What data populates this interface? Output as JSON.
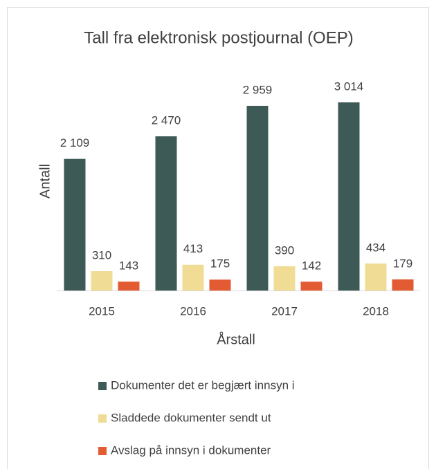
{
  "chart_data": {
    "type": "bar",
    "title": "Tall fra elektronisk postjournal (OEP)",
    "y_label": "Antall",
    "x_label": "Årstall",
    "categories": [
      "2015",
      "2016",
      "2017",
      "2018"
    ],
    "series": [
      {
        "name": "Dokumenter det er begjært innsyn i",
        "color": "#3d5a57",
        "values": [
          2109,
          2470,
          2959,
          3014
        ],
        "value_labels": [
          "2 109",
          "2 470",
          "2 959",
          "3 014"
        ]
      },
      {
        "name": "Sladdede dokumenter sendt ut",
        "color": "#f1dc96",
        "values": [
          310,
          413,
          390,
          434
        ]
      },
      {
        "name": "Avslag på innsyn i dokumenter",
        "color": "#e35b33",
        "values": [
          143,
          175,
          142,
          179
        ]
      }
    ],
    "legend": "bottom"
  }
}
